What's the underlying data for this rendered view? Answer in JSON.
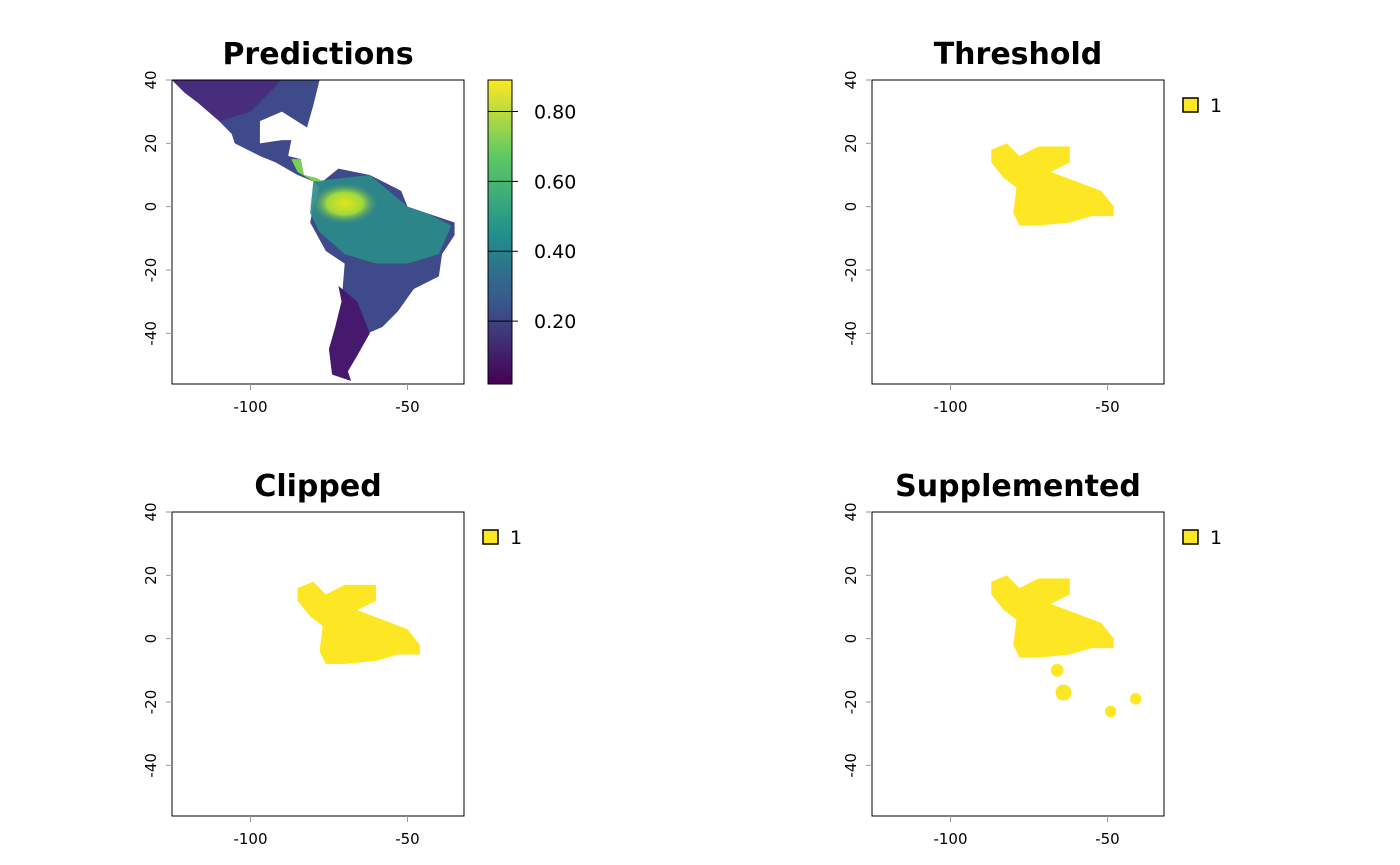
{
  "chart_data": [
    {
      "type": "map",
      "title": "Predictions",
      "xlim": [
        -125,
        -32
      ],
      "ylim": [
        -56,
        40
      ],
      "xticks": [
        -100,
        -50
      ],
      "yticks": [
        40,
        20,
        0,
        -20,
        -40
      ],
      "colorbar": {
        "lim": [
          0.02,
          0.89
        ],
        "ticks": [
          {
            "value": 0.2,
            "label": "0.20"
          },
          {
            "value": 0.4,
            "label": "0.40"
          },
          {
            "value": 0.6,
            "label": "0.60"
          },
          {
            "value": 0.8,
            "label": "0.80"
          }
        ]
      }
    },
    {
      "type": "map",
      "title": "Threshold",
      "xlim": [
        -125,
        -32
      ],
      "ylim": [
        -56,
        40
      ],
      "xticks": [
        -100,
        -50
      ],
      "yticks": [
        40,
        20,
        0,
        -20,
        -40
      ],
      "legend": {
        "labels": [
          "1"
        ],
        "color": "#fde725"
      }
    },
    {
      "type": "map",
      "title": "Clipped",
      "xlim": [
        -125,
        -32
      ],
      "ylim": [
        -56,
        40
      ],
      "xticks": [
        -100,
        -50
      ],
      "yticks": [
        40,
        20,
        0,
        -20,
        -40
      ],
      "legend": {
        "labels": [
          "1"
        ],
        "color": "#fde725"
      }
    },
    {
      "type": "map",
      "title": "Supplemented",
      "xlim": [
        -125,
        -32
      ],
      "ylim": [
        -56,
        40
      ],
      "xticks": [
        -100,
        -50
      ],
      "yticks": [
        40,
        20,
        0,
        -20,
        -40
      ],
      "legend": {
        "labels": [
          "1"
        ],
        "color": "#fde725"
      }
    }
  ]
}
